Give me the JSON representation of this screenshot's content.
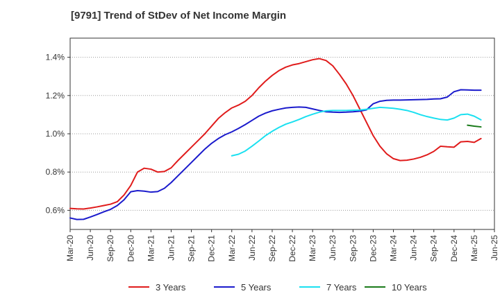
{
  "chart_data": {
    "type": "line",
    "title": "[9791]  Trend of StDev of Net Income Margin",
    "xlabel": "",
    "ylabel": "",
    "x_ticks": [
      "Mar-20",
      "Jun-20",
      "Sep-20",
      "Dec-20",
      "Mar-21",
      "Jun-21",
      "Sep-21",
      "Dec-21",
      "Mar-22",
      "Jun-22",
      "Sep-22",
      "Dec-22",
      "Mar-23",
      "Jun-23",
      "Sep-23",
      "Dec-23",
      "Mar-24",
      "Jun-24",
      "Sep-24",
      "Dec-24",
      "Mar-25",
      "Jun-25"
    ],
    "y_ticks": [
      0.6,
      0.8,
      1.0,
      1.2,
      1.4
    ],
    "y_tick_labels": [
      "0.6%",
      "0.8%",
      "1.0%",
      "1.2%",
      "1.4%"
    ],
    "ylim": [
      0.5,
      1.5
    ],
    "grid": "horizontal dotted",
    "legend_position": "bottom",
    "series": [
      {
        "name": "3 Years",
        "color": "#e01b1b",
        "points": [
          [
            "Mar-20",
            0.61
          ],
          [
            "Apr-20",
            0.608
          ],
          [
            "May-20",
            0.607
          ],
          [
            "Jun-20",
            0.612
          ],
          [
            "Jul-20",
            0.618
          ],
          [
            "Aug-20",
            0.625
          ],
          [
            "Sep-20",
            0.632
          ],
          [
            "Oct-20",
            0.645
          ],
          [
            "Nov-20",
            0.68
          ],
          [
            "Dec-20",
            0.73
          ],
          [
            "Jan-21",
            0.8
          ],
          [
            "Feb-21",
            0.82
          ],
          [
            "Mar-21",
            0.815
          ],
          [
            "Apr-21",
            0.8
          ],
          [
            "May-21",
            0.803
          ],
          [
            "Jun-21",
            0.822
          ],
          [
            "Jul-21",
            0.86
          ],
          [
            "Aug-21",
            0.895
          ],
          [
            "Sep-21",
            0.93
          ],
          [
            "Oct-21",
            0.965
          ],
          [
            "Nov-21",
            1.0
          ],
          [
            "Dec-21",
            1.04
          ],
          [
            "Jan-22",
            1.08
          ],
          [
            "Feb-22",
            1.11
          ],
          [
            "Mar-22",
            1.135
          ],
          [
            "Apr-22",
            1.15
          ],
          [
            "May-22",
            1.17
          ],
          [
            "Jun-22",
            1.2
          ],
          [
            "Jul-22",
            1.24
          ],
          [
            "Aug-22",
            1.275
          ],
          [
            "Sep-22",
            1.305
          ],
          [
            "Oct-22",
            1.33
          ],
          [
            "Nov-22",
            1.348
          ],
          [
            "Dec-22",
            1.36
          ],
          [
            "Jan-23",
            1.367
          ],
          [
            "Feb-23",
            1.377
          ],
          [
            "Mar-23",
            1.387
          ],
          [
            "Apr-23",
            1.393
          ],
          [
            "May-23",
            1.383
          ],
          [
            "Jun-23",
            1.355
          ],
          [
            "Jul-23",
            1.31
          ],
          [
            "Aug-23",
            1.26
          ],
          [
            "Sep-23",
            1.2
          ],
          [
            "Oct-23",
            1.13
          ],
          [
            "Nov-23",
            1.06
          ],
          [
            "Dec-23",
            0.99
          ],
          [
            "Jan-24",
            0.935
          ],
          [
            "Feb-24",
            0.895
          ],
          [
            "Mar-24",
            0.87
          ],
          [
            "Apr-24",
            0.86
          ],
          [
            "May-24",
            0.862
          ],
          [
            "Jun-24",
            0.868
          ],
          [
            "Jul-24",
            0.877
          ],
          [
            "Aug-24",
            0.89
          ],
          [
            "Sep-24",
            0.908
          ],
          [
            "Oct-24",
            0.935
          ],
          [
            "Nov-24",
            0.932
          ],
          [
            "Dec-24",
            0.93
          ],
          [
            "Jan-25",
            0.958
          ],
          [
            "Feb-25",
            0.96
          ],
          [
            "Mar-25",
            0.955
          ],
          [
            "Apr-25",
            0.975
          ]
        ]
      },
      {
        "name": "5 Years",
        "color": "#1a1acc",
        "points": [
          [
            "Mar-20",
            0.56
          ],
          [
            "Apr-20",
            0.552
          ],
          [
            "May-20",
            0.553
          ],
          [
            "Jun-20",
            0.565
          ],
          [
            "Jul-20",
            0.578
          ],
          [
            "Aug-20",
            0.592
          ],
          [
            "Sep-20",
            0.605
          ],
          [
            "Oct-20",
            0.625
          ],
          [
            "Nov-20",
            0.655
          ],
          [
            "Dec-20",
            0.697
          ],
          [
            "Jan-21",
            0.703
          ],
          [
            "Feb-21",
            0.7
          ],
          [
            "Mar-21",
            0.695
          ],
          [
            "Apr-21",
            0.698
          ],
          [
            "May-21",
            0.715
          ],
          [
            "Jun-21",
            0.745
          ],
          [
            "Jul-21",
            0.78
          ],
          [
            "Aug-21",
            0.815
          ],
          [
            "Sep-21",
            0.85
          ],
          [
            "Oct-21",
            0.885
          ],
          [
            "Nov-21",
            0.92
          ],
          [
            "Dec-21",
            0.95
          ],
          [
            "Jan-22",
            0.975
          ],
          [
            "Feb-22",
            0.995
          ],
          [
            "Mar-22",
            1.01
          ],
          [
            "Apr-22",
            1.028
          ],
          [
            "May-22",
            1.048
          ],
          [
            "Jun-22",
            1.07
          ],
          [
            "Jul-22",
            1.092
          ],
          [
            "Aug-22",
            1.108
          ],
          [
            "Sep-22",
            1.12
          ],
          [
            "Oct-22",
            1.128
          ],
          [
            "Nov-22",
            1.135
          ],
          [
            "Dec-22",
            1.138
          ],
          [
            "Jan-23",
            1.14
          ],
          [
            "Feb-23",
            1.138
          ],
          [
            "Mar-23",
            1.13
          ],
          [
            "Apr-23",
            1.122
          ],
          [
            "May-23",
            1.115
          ],
          [
            "Jun-23",
            1.113
          ],
          [
            "Jul-23",
            1.112
          ],
          [
            "Aug-23",
            1.113
          ],
          [
            "Sep-23",
            1.115
          ],
          [
            "Oct-23",
            1.118
          ],
          [
            "Nov-23",
            1.125
          ],
          [
            "Dec-23",
            1.157
          ],
          [
            "Jan-24",
            1.17
          ],
          [
            "Feb-24",
            1.175
          ],
          [
            "Mar-24",
            1.176
          ],
          [
            "Apr-24",
            1.176
          ],
          [
            "May-24",
            1.177
          ],
          [
            "Jun-24",
            1.178
          ],
          [
            "Jul-24",
            1.179
          ],
          [
            "Aug-24",
            1.18
          ],
          [
            "Sep-24",
            1.182
          ],
          [
            "Oct-24",
            1.183
          ],
          [
            "Nov-24",
            1.192
          ],
          [
            "Dec-24",
            1.22
          ],
          [
            "Jan-25",
            1.23
          ],
          [
            "Feb-25",
            1.229
          ],
          [
            "Mar-25",
            1.228
          ],
          [
            "Apr-25",
            1.228
          ]
        ]
      },
      {
        "name": "7 Years",
        "color": "#1ae0f0",
        "points": [
          [
            "Mar-22",
            0.885
          ],
          [
            "Apr-22",
            0.893
          ],
          [
            "May-22",
            0.91
          ],
          [
            "Jun-22",
            0.935
          ],
          [
            "Jul-22",
            0.962
          ],
          [
            "Aug-22",
            0.99
          ],
          [
            "Sep-22",
            1.013
          ],
          [
            "Oct-22",
            1.033
          ],
          [
            "Nov-22",
            1.05
          ],
          [
            "Dec-22",
            1.062
          ],
          [
            "Jan-23",
            1.075
          ],
          [
            "Feb-23",
            1.09
          ],
          [
            "Mar-23",
            1.102
          ],
          [
            "Apr-23",
            1.113
          ],
          [
            "May-23",
            1.12
          ],
          [
            "Jun-23",
            1.122
          ],
          [
            "Jul-23",
            1.122
          ],
          [
            "Aug-23",
            1.122
          ],
          [
            "Sep-23",
            1.123
          ],
          [
            "Oct-23",
            1.124
          ],
          [
            "Nov-23",
            1.128
          ],
          [
            "Dec-23",
            1.133
          ],
          [
            "Jan-24",
            1.138
          ],
          [
            "Feb-24",
            1.136
          ],
          [
            "Mar-24",
            1.133
          ],
          [
            "Apr-24",
            1.128
          ],
          [
            "May-24",
            1.122
          ],
          [
            "Jun-24",
            1.112
          ],
          [
            "Jul-24",
            1.1
          ],
          [
            "Aug-24",
            1.09
          ],
          [
            "Sep-24",
            1.082
          ],
          [
            "Oct-24",
            1.075
          ],
          [
            "Nov-24",
            1.072
          ],
          [
            "Dec-24",
            1.082
          ],
          [
            "Jan-25",
            1.1
          ],
          [
            "Feb-25",
            1.103
          ],
          [
            "Mar-25",
            1.092
          ],
          [
            "Apr-25",
            1.073
          ]
        ]
      },
      {
        "name": "10 Years",
        "color": "#1a7a1a",
        "points": [
          [
            "Feb-25",
            1.045
          ],
          [
            "Mar-25",
            1.04
          ],
          [
            "Apr-25",
            1.036
          ]
        ]
      }
    ]
  }
}
